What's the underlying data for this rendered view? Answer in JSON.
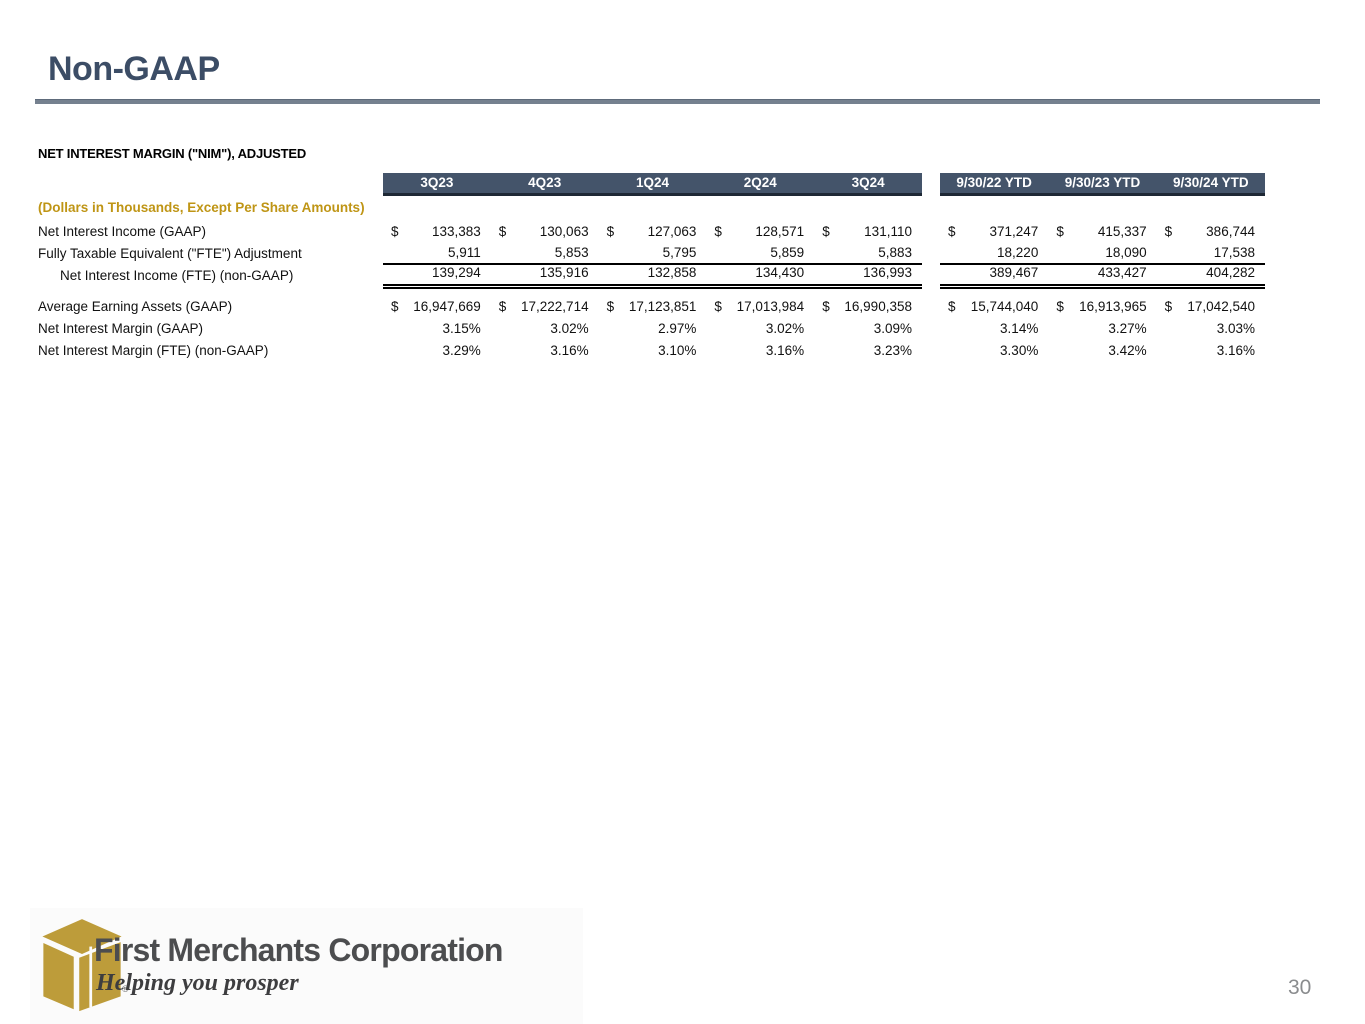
{
  "slide": {
    "title": "Non-GAAP",
    "page_number": "30"
  },
  "table": {
    "section_title": "NET INTEREST MARGIN (\"NIM\"), ADJUSTED",
    "units_note": "(Dollars in Thousands, Except Per Share Amounts)",
    "quarter_headers": [
      "3Q23",
      "4Q23",
      "1Q24",
      "2Q24",
      "3Q24"
    ],
    "ytd_headers": [
      "9/30/22 YTD",
      "9/30/23 YTD",
      "9/30/24 YTD"
    ],
    "rows": [
      {
        "label": "Net Interest Income (GAAP)",
        "dollar": true,
        "indent": false,
        "quarters": [
          "133,383",
          "130,063",
          "127,063",
          "128,571",
          "131,110"
        ],
        "ytd": [
          "371,247",
          "415,337",
          "386,744"
        ]
      },
      {
        "label": "Fully Taxable Equivalent (\"FTE\") Adjustment",
        "dollar": false,
        "indent": false,
        "quarters": [
          "5,911",
          "5,853",
          "5,795",
          "5,859",
          "5,883"
        ],
        "ytd": [
          "18,220",
          "18,090",
          "17,538"
        ]
      },
      {
        "label": "Net Interest Income (FTE) (non-GAAP)",
        "dollar": false,
        "indent": true,
        "quarters": [
          "139,294",
          "135,916",
          "132,858",
          "134,430",
          "136,993"
        ],
        "ytd": [
          "389,467",
          "433,427",
          "404,282"
        ]
      },
      {
        "label": "Average Earning Assets (GAAP)",
        "dollar": true,
        "indent": false,
        "quarters": [
          "16,947,669",
          "17,222,714",
          "17,123,851",
          "17,013,984",
          "16,990,358"
        ],
        "ytd": [
          "15,744,040",
          "16,913,965",
          "17,042,540"
        ]
      },
      {
        "label": "Net Interest Margin (GAAP)",
        "dollar": false,
        "indent": false,
        "quarters": [
          "3.15%",
          "3.02%",
          "2.97%",
          "3.02%",
          "3.09%"
        ],
        "ytd": [
          "3.14%",
          "3.27%",
          "3.03%"
        ]
      },
      {
        "label": "Net Interest Margin (FTE) (non-GAAP)",
        "dollar": false,
        "indent": false,
        "quarters": [
          "3.29%",
          "3.16%",
          "3.10%",
          "3.16%",
          "3.23%"
        ],
        "ytd": [
          "3.30%",
          "3.42%",
          "3.16%"
        ]
      }
    ],
    "dollar_sign": "$"
  },
  "footer": {
    "company": "First Merchants Corporation",
    "tagline": "Helping you prosper",
    "registered": "®"
  },
  "colors": {
    "title": "#3C4D66",
    "title_rule": "#75818F",
    "header_band_bg": "#44546A",
    "header_band_border": "#1E2835",
    "accent_gold": "#BF9515",
    "logo_gold": "#BD9C3A",
    "logo_text": "#4C4D4F",
    "page_number_gray": "#8A8C8E"
  }
}
